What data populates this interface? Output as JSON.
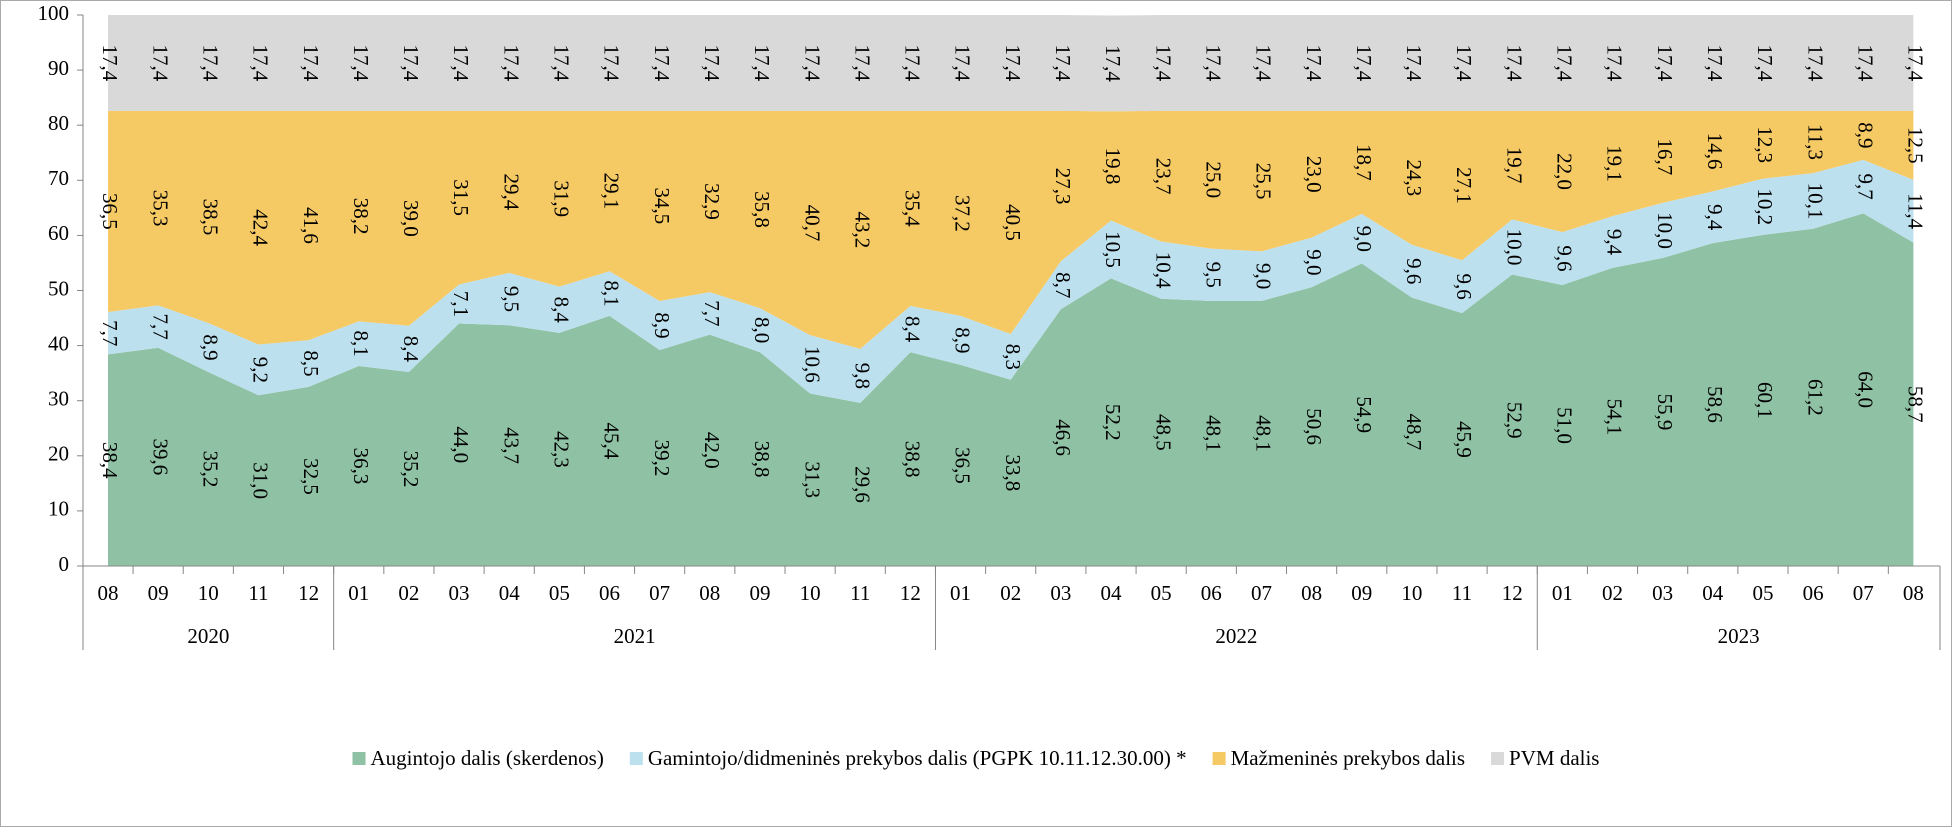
{
  "chart_data": {
    "type": "stacked_area",
    "category_groups": [
      {
        "name": "2020",
        "categories": [
          "08",
          "09",
          "10",
          "11",
          "12"
        ]
      },
      {
        "name": "2021",
        "categories": [
          "01",
          "02",
          "03",
          "04",
          "05",
          "06",
          "07",
          "08",
          "09",
          "10",
          "11",
          "12"
        ]
      },
      {
        "name": "2022",
        "categories": [
          "01",
          "02",
          "03",
          "04",
          "05",
          "06",
          "07",
          "08",
          "09",
          "10",
          "11",
          "12"
        ]
      },
      {
        "name": "2023",
        "categories": [
          "01",
          "02",
          "03",
          "04",
          "05",
          "06",
          "07",
          "08"
        ]
      }
    ],
    "ylim": [
      0,
      100
    ],
    "yticks": [
      0,
      10,
      20,
      30,
      40,
      50,
      60,
      70,
      80,
      90,
      100
    ],
    "legend": "bottom",
    "series": [
      {
        "name": "Augintojo dalis (skerdenos)",
        "color": "#8fc1a4",
        "values": [
          38.4,
          39.6,
          35.2,
          31.0,
          32.5,
          36.3,
          35.2,
          44.0,
          43.7,
          42.3,
          45.4,
          39.2,
          42.0,
          38.8,
          31.3,
          29.6,
          38.8,
          36.5,
          33.8,
          46.6,
          52.2,
          48.5,
          48.1,
          48.1,
          50.6,
          54.9,
          48.7,
          45.9,
          52.9,
          51.0,
          54.1,
          55.9,
          58.6,
          60.1,
          61.2,
          64.0,
          58.7
        ],
        "value_labels": [
          "38,4",
          "39,6",
          "35,2",
          "31,0",
          "32,5",
          "36,3",
          "35,2",
          "44,0",
          "43,7",
          "42,3",
          "45,4",
          "39,2",
          "42,0",
          "38,8",
          "31,3",
          "29,6",
          "38,8",
          "36,5",
          "33,8",
          "46,6",
          "52,2",
          "48,5",
          "48,1",
          "48,1",
          "50,6",
          "54,9",
          "48,7",
          "45,9",
          "52,9",
          "51,0",
          "54,1",
          "55,9",
          "58,6",
          "60,1",
          "61,2",
          "64,0",
          "58,7"
        ]
      },
      {
        "name": "Gamintojo/didmeninės prekybos dalis (PGPK 10.11.12.30.00) *",
        "color": "#bde0ef",
        "values": [
          7.7,
          7.7,
          8.9,
          9.2,
          8.5,
          8.1,
          8.4,
          7.1,
          9.5,
          8.4,
          8.1,
          8.9,
          7.7,
          8.0,
          10.6,
          9.8,
          8.4,
          8.9,
          8.3,
          8.7,
          10.5,
          10.4,
          9.5,
          9.0,
          9.0,
          9.0,
          9.6,
          9.6,
          10.0,
          9.6,
          9.4,
          10.0,
          9.4,
          10.2,
          10.1,
          9.7,
          11.4
        ],
        "value_labels": [
          "7,7",
          "7,7",
          "8,9",
          "9,2",
          "8,5",
          "8,1",
          "8,4",
          "7,1",
          "9,5",
          "8,4",
          "8,1",
          "8,9",
          "7,7",
          "8,0",
          "10,6",
          "9,8",
          "8,4",
          "8,9",
          "8,3",
          "8,7",
          "10,5",
          "10,4",
          "9,5",
          "9,0",
          "9,0",
          "9,0",
          "9,6",
          "9,6",
          "10,0",
          "9,6",
          "9,4",
          "10,0",
          "9,4",
          "10,2",
          "10,1",
          "9,7",
          "11,4"
        ]
      },
      {
        "name": "Mažmeninės prekybos dalis",
        "color": "#f5c964",
        "values": [
          36.5,
          35.3,
          38.5,
          42.4,
          41.6,
          38.2,
          39.0,
          31.5,
          29.4,
          31.9,
          29.1,
          34.5,
          32.9,
          35.8,
          40.7,
          43.2,
          35.4,
          37.2,
          40.5,
          27.3,
          19.8,
          23.7,
          25.0,
          25.5,
          23.0,
          18.7,
          24.3,
          27.1,
          19.7,
          22.0,
          19.1,
          16.7,
          14.6,
          12.3,
          11.3,
          8.9,
          12.5
        ],
        "value_labels": [
          "36,5",
          "35,3",
          "38,5",
          "42,4",
          "41,6",
          "38,2",
          "39,0",
          "31,5",
          "29,4",
          "31,9",
          "29,1",
          "34,5",
          "32,9",
          "35,8",
          "40,7",
          "43,2",
          "35,4",
          "37,2",
          "40,5",
          "27,3",
          "19,8",
          "23,7",
          "25,0",
          "25,5",
          "23,0",
          "18,7",
          "24,3",
          "27,1",
          "19,7",
          "22,0",
          "19,1",
          "16,7",
          "14,6",
          "12,3",
          "11,3",
          "8,9",
          "12,5"
        ]
      },
      {
        "name": "PVM dalis",
        "color": "#d9d9d9",
        "values": [
          17.4,
          17.4,
          17.4,
          17.4,
          17.4,
          17.4,
          17.4,
          17.4,
          17.4,
          17.4,
          17.4,
          17.4,
          17.4,
          17.4,
          17.4,
          17.4,
          17.4,
          17.4,
          17.4,
          17.4,
          17.4,
          17.4,
          17.4,
          17.4,
          17.4,
          17.4,
          17.4,
          17.4,
          17.4,
          17.4,
          17.4,
          17.4,
          17.4,
          17.4,
          17.4,
          17.4,
          17.4
        ],
        "value_labels": [
          "17,4",
          "17,4",
          "17,4",
          "17,4",
          "17,4",
          "17,4",
          "17,4",
          "17,4",
          "17,4",
          "17,4",
          "17,4",
          "17,4",
          "17,4",
          "17,4",
          "17,4",
          "17,4",
          "17,4",
          "17,4",
          "17,4",
          "17,4",
          "17,4",
          "17,4",
          "17,4",
          "17,4",
          "17,4",
          "17,4",
          "17,4",
          "17,4",
          "17,4",
          "17,4",
          "17,4",
          "17,4",
          "17,4",
          "17,4",
          "17,4",
          "17,4",
          "17,4"
        ]
      }
    ]
  }
}
